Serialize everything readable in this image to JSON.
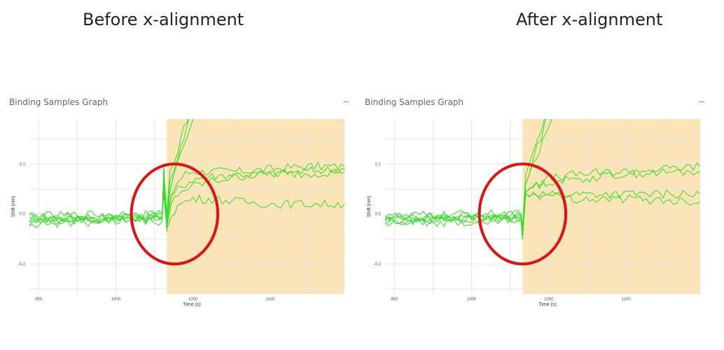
{
  "headings": {
    "left": "Before x-alignment",
    "right": "After x-alignment"
  },
  "panels": [
    {
      "title": "Binding Samples Graph",
      "collapse_icon": "minus-icon"
    },
    {
      "title": "Binding Samples Graph",
      "collapse_icon": "minus-icon"
    }
  ],
  "colors": {
    "series": "#33dd22",
    "shaded_region": "#fbe4b8",
    "annotation_circle": "#e21010"
  },
  "chart_data": [
    {
      "type": "line",
      "title": "Before x-alignment",
      "xlabel": "Time (s)",
      "ylabel": "Shift (nm)",
      "xlim": [
        944,
        1148
      ],
      "ylim": [
        -0.32,
        0.38
      ],
      "xticks": [
        950,
        1000,
        1050,
        1100
      ],
      "xtick_labels": [
        "950",
        "1000",
        "1050",
        "1100"
      ],
      "yticks": [
        -0.2,
        0.0,
        0.2
      ],
      "ytick_labels": [
        "-0.2",
        "0.0",
        "0.2"
      ],
      "grid": true,
      "shaded_region": {
        "x_start": 1033,
        "x_end": 1148
      },
      "annotation": {
        "shape": "circle",
        "center": [
          1038,
          0.0
        ],
        "radius_x": 28,
        "radius_y": 0.2
      },
      "series": [
        {
          "x": [
            944,
            1000,
            1030,
            1031,
            1033,
            1036,
            1040,
            1045,
            1050,
            1060,
            1080,
            1100,
            1120,
            1148
          ],
          "y": [
            -0.01,
            -0.01,
            0.0,
            0.12,
            -0.02,
            0.08,
            0.13,
            0.16,
            0.17,
            0.17,
            0.17,
            0.18,
            0.19,
            0.19
          ]
        },
        {
          "x": [
            944,
            1000,
            1030,
            1031,
            1033,
            1036,
            1040,
            1045,
            1050,
            1060,
            1080,
            1100,
            1120,
            1148
          ],
          "y": [
            -0.02,
            -0.02,
            -0.01,
            0.14,
            -0.04,
            0.06,
            0.1,
            0.12,
            0.14,
            0.15,
            0.16,
            0.16,
            0.17,
            0.18
          ]
        },
        {
          "x": [
            944,
            1000,
            1030,
            1031,
            1033,
            1036,
            1040,
            1045,
            1050,
            1060,
            1080,
            1100,
            1120,
            1148
          ],
          "y": [
            -0.03,
            -0.02,
            -0.02,
            0.1,
            -0.05,
            0.04,
            0.08,
            0.1,
            0.11,
            0.13,
            0.15,
            0.16,
            0.16,
            0.17
          ]
        },
        {
          "x": [
            944,
            1000,
            1030,
            1031,
            1033,
            1036,
            1040,
            1045,
            1050,
            1060,
            1080,
            1100,
            1120,
            1148
          ],
          "y": [
            -0.02,
            -0.01,
            -0.01,
            0.08,
            -0.06,
            0.0,
            0.03,
            0.05,
            0.06,
            0.06,
            0.05,
            0.04,
            0.04,
            0.04
          ]
        },
        {
          "x": [
            944,
            1000,
            1030,
            1031,
            1033,
            1035,
            1040,
            1044,
            1048
          ],
          "y": [
            -0.01,
            0.0,
            0.0,
            0.17,
            0.0,
            0.16,
            0.26,
            0.34,
            0.4
          ]
        },
        {
          "x": [
            944,
            1000,
            1030,
            1031,
            1033,
            1035,
            1040,
            1044,
            1048
          ],
          "y": [
            -0.03,
            -0.02,
            -0.03,
            0.18,
            -0.03,
            0.13,
            0.22,
            0.31,
            0.4
          ]
        },
        {
          "x": [
            944,
            1000,
            1030,
            1031,
            1033,
            1035,
            1040,
            1045,
            1050
          ],
          "y": [
            -0.04,
            -0.03,
            -0.02,
            0.2,
            -0.07,
            0.1,
            0.2,
            0.29,
            0.38
          ]
        }
      ]
    },
    {
      "type": "line",
      "title": "After x-alignment",
      "xlabel": "Time (s)",
      "ylabel": "Shift (nm)",
      "xlim": [
        944,
        1148
      ],
      "ylim": [
        -0.32,
        0.38
      ],
      "xticks": [
        950,
        1000,
        1050,
        1100
      ],
      "xtick_labels": [
        "950",
        "1000",
        "1050",
        "1100"
      ],
      "yticks": [
        -0.2,
        0.0,
        0.2
      ],
      "ytick_labels": [
        "-0.2",
        "0.0",
        "0.2"
      ],
      "grid": true,
      "shaded_region": {
        "x_start": 1033,
        "x_end": 1148
      },
      "annotation": {
        "shape": "circle",
        "center": [
          1033,
          0.0
        ],
        "radius_x": 28,
        "radius_y": 0.2
      },
      "series": [
        {
          "x": [
            944,
            1000,
            1032,
            1033,
            1035,
            1040,
            1050,
            1070,
            1100,
            1148
          ],
          "y": [
            -0.01,
            -0.01,
            0.0,
            -0.08,
            0.1,
            0.12,
            0.14,
            0.16,
            0.17,
            0.19
          ]
        },
        {
          "x": [
            944,
            1000,
            1032,
            1033,
            1035,
            1040,
            1050,
            1070,
            1100,
            1148
          ],
          "y": [
            -0.02,
            -0.02,
            -0.01,
            -0.1,
            0.09,
            0.11,
            0.13,
            0.14,
            0.16,
            0.17
          ]
        },
        {
          "x": [
            944,
            1000,
            1032,
            1033,
            1035,
            1040,
            1050,
            1070,
            1100,
            1148
          ],
          "y": [
            -0.03,
            -0.02,
            -0.02,
            -0.09,
            0.08,
            0.09,
            0.08,
            0.08,
            0.08,
            0.08
          ]
        },
        {
          "x": [
            944,
            1000,
            1032,
            1033,
            1035,
            1040,
            1050,
            1070,
            1100,
            1148
          ],
          "y": [
            -0.02,
            -0.01,
            -0.01,
            -0.1,
            0.07,
            0.08,
            0.07,
            0.06,
            0.06,
            0.05
          ]
        },
        {
          "x": [
            944,
            1000,
            1032,
            1033,
            1035,
            1040,
            1045,
            1048
          ],
          "y": [
            -0.01,
            0.0,
            0.0,
            -0.05,
            0.14,
            0.25,
            0.33,
            0.4
          ]
        },
        {
          "x": [
            944,
            1000,
            1032,
            1033,
            1035,
            1040,
            1045,
            1050
          ],
          "y": [
            -0.03,
            -0.02,
            -0.03,
            -0.07,
            0.13,
            0.22,
            0.31,
            0.4
          ]
        },
        {
          "x": [
            944,
            1000,
            1032,
            1033,
            1035,
            1040,
            1046,
            1052
          ],
          "y": [
            -0.04,
            -0.03,
            -0.02,
            -0.1,
            0.12,
            0.2,
            0.29,
            0.38
          ]
        }
      ]
    }
  ]
}
